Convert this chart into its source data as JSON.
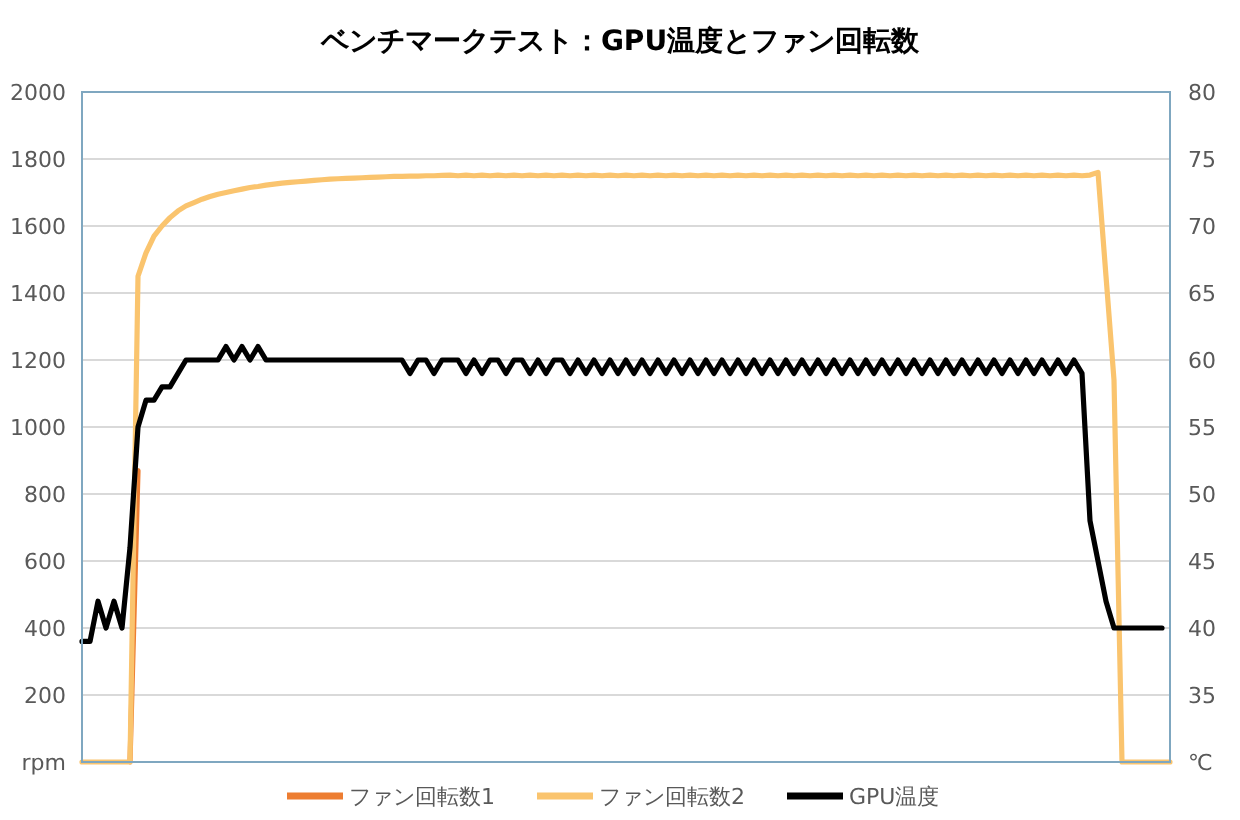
{
  "chart_data": {
    "type": "line",
    "title": "ベンチマークテスト：GPU温度とファン回転数",
    "categories": [
      null,
      null,
      null,
      null,
      null,
      null,
      null,
      null,
      null,
      null,
      null,
      null,
      null,
      null,
      null,
      null,
      null,
      null,
      null,
      null,
      null,
      null,
      null,
      null,
      null,
      null,
      null,
      null,
      null,
      null,
      null,
      null,
      null,
      null,
      null,
      null,
      null,
      null,
      null,
      null,
      null,
      null,
      null,
      null,
      null,
      null,
      null,
      null,
      null,
      null,
      null,
      null,
      null,
      null,
      null,
      null,
      null,
      null,
      null,
      null,
      null,
      null,
      null,
      null,
      null,
      null,
      null,
      null,
      null,
      null,
      null,
      null,
      null,
      null,
      null,
      null,
      null,
      null,
      null,
      null,
      null,
      null,
      null,
      null,
      null,
      null,
      null,
      null,
      null,
      null,
      null,
      null,
      null,
      null,
      null,
      null,
      null,
      null,
      null,
      null,
      null,
      null,
      null,
      null,
      null,
      null,
      null,
      null,
      null,
      null,
      null,
      null,
      null,
      null,
      null,
      null,
      null,
      null,
      null,
      null,
      null,
      null,
      null,
      null,
      null,
      null,
      null,
      null,
      null,
      null,
      null,
      null,
      null,
      null,
      null,
      null,
      null
    ],
    "series": [
      {
        "name": "ファン回転数1",
        "color": "#ed7d31",
        "values": [
          null,
          null,
          null,
          null,
          null,
          null,
          0,
          870,
          null,
          null,
          null,
          null,
          null,
          null,
          null,
          null,
          null,
          null,
          null,
          null,
          null,
          null,
          null,
          null,
          null,
          null,
          null,
          null,
          null,
          null,
          null,
          null,
          null,
          null,
          null,
          null,
          null,
          null,
          null,
          null,
          null,
          null,
          null,
          null,
          null,
          null,
          null,
          null,
          null,
          null,
          null,
          null,
          null,
          null,
          null,
          null,
          null,
          null,
          null,
          null,
          null,
          null,
          null,
          null,
          null,
          null,
          null,
          null,
          null,
          null,
          null,
          null,
          null,
          null,
          null,
          null,
          null,
          null,
          null,
          null,
          null,
          null,
          null,
          null,
          null,
          null,
          null,
          null,
          null,
          null,
          null,
          null,
          null,
          null,
          null,
          null,
          null,
          null,
          null,
          null,
          null,
          null,
          null,
          null,
          null,
          null,
          null,
          null,
          null,
          null,
          null,
          null,
          null,
          null,
          null,
          null,
          null,
          null,
          null,
          null,
          null,
          null,
          null,
          null,
          null,
          null,
          null,
          null,
          null,
          null,
          null,
          null,
          null,
          null,
          null,
          null,
          null
        ]
      },
      {
        "name": "ファン回転数2",
        "color": "#fac46e",
        "values": [
          0,
          0,
          0,
          0,
          0,
          0,
          0,
          1450,
          1520,
          1570,
          1600,
          1625,
          1645,
          1660,
          1670,
          1680,
          1688,
          1695,
          1700,
          1705,
          1710,
          1715,
          1718,
          1722,
          1725,
          1728,
          1730,
          1732,
          1734,
          1736,
          1738,
          1740,
          1741,
          1742,
          1743,
          1744,
          1745,
          1746,
          1747,
          1748,
          1748,
          1749,
          1749,
          1750,
          1750,
          1751,
          1752,
          1750,
          1752,
          1750,
          1752,
          1750,
          1752,
          1750,
          1752,
          1750,
          1752,
          1750,
          1752,
          1750,
          1752,
          1750,
          1752,
          1750,
          1752,
          1750,
          1752,
          1750,
          1752,
          1750,
          1752,
          1750,
          1752,
          1750,
          1752,
          1750,
          1752,
          1750,
          1752,
          1750,
          1752,
          1750,
          1752,
          1750,
          1752,
          1750,
          1752,
          1750,
          1752,
          1750,
          1752,
          1750,
          1752,
          1750,
          1752,
          1750,
          1752,
          1750,
          1752,
          1750,
          1752,
          1750,
          1752,
          1750,
          1752,
          1750,
          1752,
          1750,
          1752,
          1750,
          1752,
          1750,
          1752,
          1750,
          1752,
          1750,
          1752,
          1750,
          1752,
          1750,
          1752,
          1750,
          1752,
          1750,
          1752,
          1750,
          1752,
          1760,
          1450,
          1140,
          0,
          0,
          0,
          0,
          0,
          0,
          0
        ]
      },
      {
        "name": "GPU温度",
        "color": "#000000",
        "axis": "y2",
        "values": [
          39,
          39,
          42,
          40,
          42,
          40,
          46,
          55,
          57,
          57,
          58,
          58,
          59,
          60,
          60,
          60,
          60,
          60,
          61,
          60,
          61,
          60,
          61,
          60,
          60,
          60,
          60,
          60,
          60,
          60,
          60,
          60,
          60,
          60,
          60,
          60,
          60,
          60,
          60,
          60,
          60,
          59,
          60,
          60,
          59,
          60,
          60,
          60,
          59,
          60,
          59,
          60,
          60,
          59,
          60,
          60,
          59,
          60,
          59,
          60,
          60,
          59,
          60,
          59,
          60,
          59,
          60,
          59,
          60,
          59,
          60,
          59,
          60,
          59,
          60,
          59,
          60,
          59,
          60,
          59,
          60,
          59,
          60,
          59,
          60,
          59,
          60,
          59,
          60,
          59,
          60,
          59,
          60,
          59,
          60,
          59,
          60,
          59,
          60,
          59,
          60,
          59,
          60,
          59,
          60,
          59,
          60,
          59,
          60,
          59,
          60,
          59,
          60,
          59,
          60,
          59,
          60,
          59,
          60,
          59,
          60,
          59,
          60,
          59,
          60,
          59,
          48,
          45,
          42,
          40,
          40,
          40,
          40,
          40,
          40,
          40,
          null
        ]
      }
    ],
    "ylim": [
      0,
      2000
    ],
    "yticks": [
      {
        "value": 0,
        "label": "rpm"
      },
      200,
      400,
      600,
      800,
      1000,
      1200,
      1400,
      1600,
      1800,
      2000
    ],
    "y2lim": [
      30,
      80
    ],
    "y2ticks": [
      {
        "value": 30,
        "label": "℃"
      },
      35,
      40,
      45,
      50,
      55,
      60,
      65,
      70,
      75,
      80
    ],
    "grid": "y",
    "legend": "bottom"
  }
}
